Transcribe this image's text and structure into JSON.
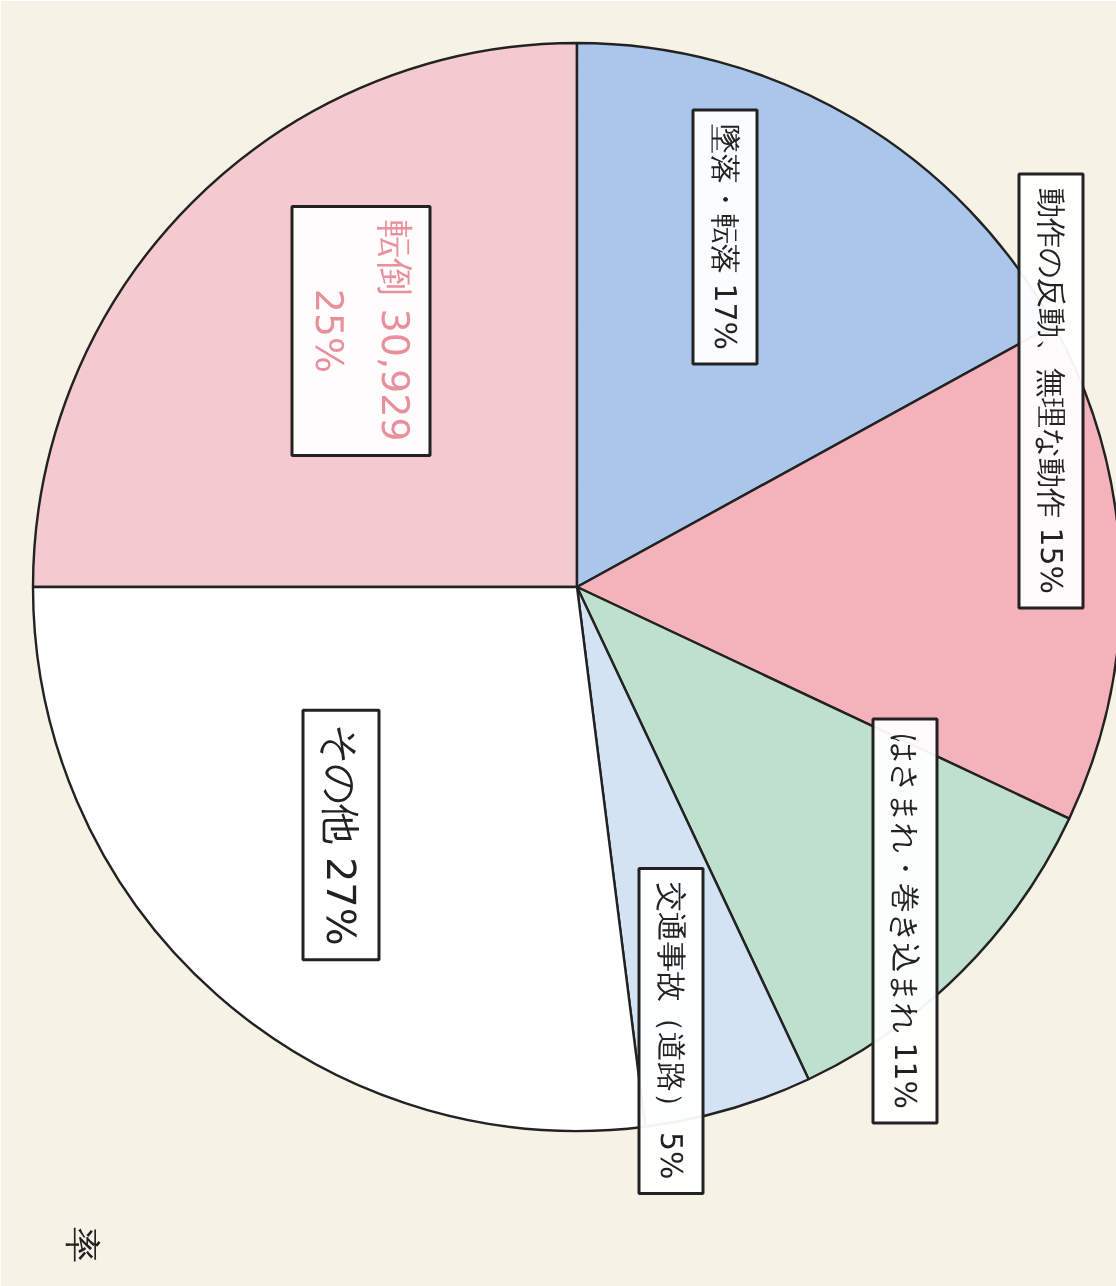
{
  "chart_data": {
    "type": "pie",
    "categories": [
      "転倒",
      "墜落・転落",
      "動作の反動、無理な動作",
      "はさまれ・巻き込まれ",
      "交通事故（道路）",
      "その他"
    ],
    "values": [
      25,
      17,
      15,
      11,
      5,
      27
    ],
    "value_labels": [
      "30,929\n25%",
      "17%",
      "15%",
      "11%",
      "5%",
      "27%"
    ],
    "colors": [
      "#f4c9cf",
      "#aac6ea",
      "#f4b3bb",
      "#bfe0cf",
      "#d3e3f3",
      "#ffffff"
    ],
    "annotations": [
      "率"
    ]
  }
}
